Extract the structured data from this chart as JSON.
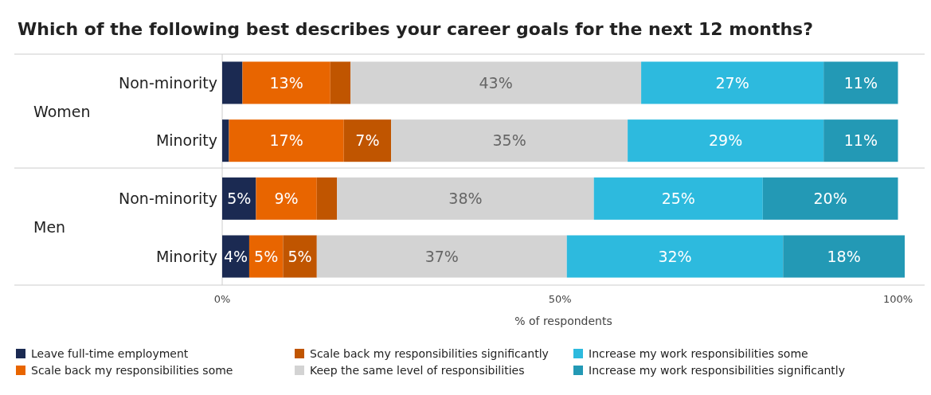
{
  "chart_data": {
    "type": "bar",
    "orientation": "horizontal",
    "stacked": true,
    "title": "Which of the following best describes your career goals for the next 12 months?",
    "xlabel": "% of respondents",
    "categories": [
      "Non-minority",
      "Minority",
      "Non-minority",
      "Minority"
    ],
    "annotations": [
      "Women",
      "Men"
    ],
    "xlim": [
      0,
      101
    ],
    "xticks": [
      {
        "value": 0,
        "label": "0%"
      },
      {
        "value": 50,
        "label": "50%"
      },
      {
        "value": 100,
        "label": "100%"
      }
    ],
    "legend": "bottom",
    "grid": false,
    "series": [
      {
        "name": "Leave full-time employment",
        "color": "#1b2a52",
        "values": [
          3,
          1,
          5,
          4
        ],
        "value_labels": [
          null,
          null,
          "5%",
          "4%"
        ]
      },
      {
        "name": "Scale back my responsibilities some",
        "color": "#e86500",
        "values": [
          13,
          17,
          9,
          5
        ],
        "value_labels": [
          "13%",
          "17%",
          "9%",
          "5%"
        ]
      },
      {
        "name": "Scale back my responsibilities significantly",
        "color": "#c05500",
        "values": [
          3,
          7,
          3,
          5
        ],
        "value_labels": [
          null,
          "7%",
          null,
          "5%"
        ]
      },
      {
        "name": "Keep the same level of responsibilities",
        "color": "#d3d3d3",
        "values": [
          43,
          35,
          38,
          37
        ],
        "value_labels": [
          "43%",
          "35%",
          "38%",
          "37%"
        ]
      },
      {
        "name": "Increase my work responsibilities some",
        "color": "#2dbade",
        "values": [
          27,
          29,
          25,
          32
        ],
        "value_labels": [
          "27%",
          "29%",
          "25%",
          "32%"
        ]
      },
      {
        "name": "Increase my work responsibilities significantly",
        "color": "#2399b5",
        "values": [
          11,
          11,
          20,
          18
        ],
        "value_labels": [
          "11%",
          "11%",
          "20%",
          "18%"
        ]
      }
    ]
  }
}
